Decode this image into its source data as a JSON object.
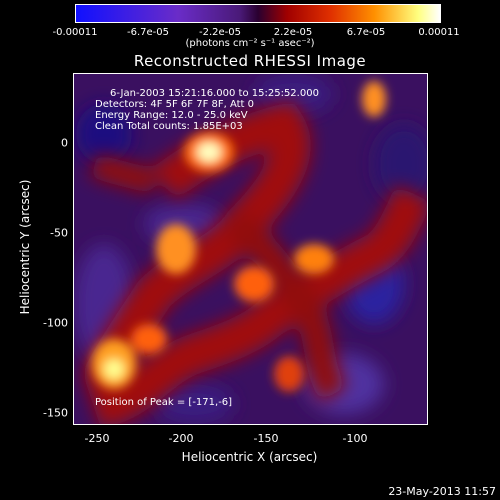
{
  "colorbar": {
    "ticks": [
      "-0.00011",
      "-6.7e-05",
      "-2.2e-05",
      "2.2e-05",
      "6.7e-05",
      "0.00011"
    ],
    "tick_values": [
      -0.00011,
      -6.7e-05,
      -2.2e-05,
      2.2e-05,
      6.7e-05,
      0.00011
    ],
    "units": "(photons cm⁻² s⁻¹ asec⁻²)"
  },
  "chart_data": {
    "type": "heatmap",
    "title": "Reconstructed RHESSI Image",
    "xlabel": "Heliocentric X (arcsec)",
    "ylabel": "Heliocentric Y (arcsec)",
    "xlim": [
      -258,
      -70
    ],
    "ylim": [
      -155,
      15
    ],
    "x_ticks": [
      "-250",
      "-200",
      "-150",
      "-100"
    ],
    "x_tick_values": [
      -250,
      -200,
      -150,
      -100
    ],
    "y_ticks": [
      "0",
      "-50",
      "-100",
      "-150"
    ],
    "y_tick_values": [
      0,
      -50,
      -100,
      -150
    ],
    "annotations": [
      "6-Jan-2003 15:21:16.000 to 15:25:52.000",
      "Detectors: 4F 5F 6F 7F 8F, Att 0",
      "Energy Range: 12.0 - 25.0 keV",
      "Clean    Total counts: 1.85E+03"
    ],
    "peak_label": "Position of Peak = [-171,-6]",
    "peak": [
      -171,
      -6
    ],
    "colormap": [
      "#1010ff",
      "#4a1a78",
      "#2a0030",
      "#a00000",
      "#ff9000",
      "#ffffff"
    ]
  },
  "timestamp": "23-May-2013 11:57"
}
